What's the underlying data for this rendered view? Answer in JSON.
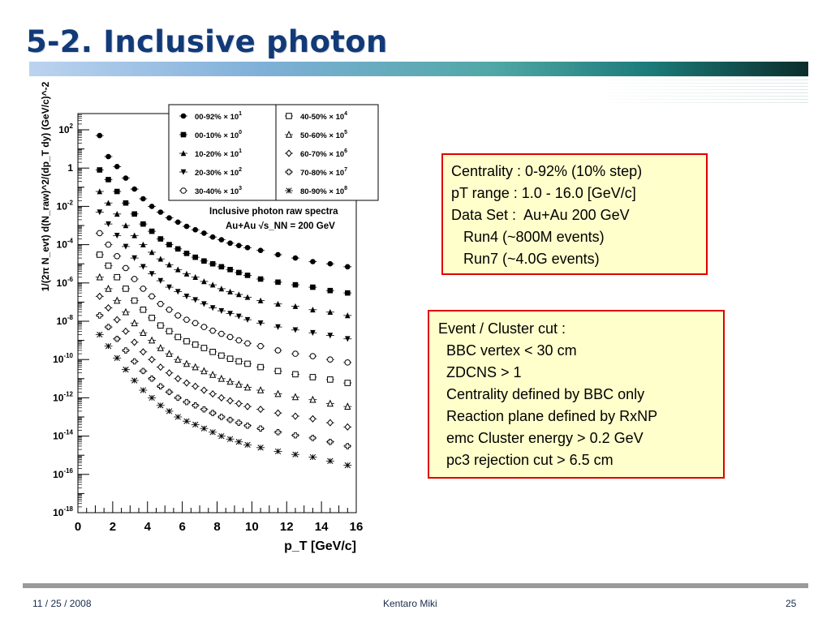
{
  "slide": {
    "title": "5-2. Inclusive photon",
    "footer_date": "11 / 25 / 2008",
    "footer_author": "Kentaro Miki",
    "page_number": "25"
  },
  "info_box_1": {
    "lines": [
      "Centrality : 0-92% (10% step)",
      "pT range : 1.0 - 16.0 [GeV/c]",
      "Data Set :  Au+Au 200 GeV",
      "   Run4 (~800M events)",
      "   Run7 (~4.0G events)"
    ]
  },
  "info_box_2": {
    "lines": [
      "Event / Cluster cut :",
      "  BBC vertex < 30 cm",
      "  ZDCNS > 1",
      "  Centrality defined by BBC only",
      "  Reaction plane defined by RxNP",
      "  emc Cluster energy > 0.2 GeV",
      "  pc3 rejection cut > 6.5 cm"
    ]
  },
  "chart_data": {
    "type": "scatter",
    "title": "Inclusive photon raw spectra",
    "subtitle": "Au+Au √s_NN = 200 GeV",
    "xlabel": "p_T [GeV/c]",
    "ylabel": "1/(2π N_evt) d(N_raw)^2/(dp_T dy) (GeV/c)^-2",
    "xlim": [
      0,
      16
    ],
    "ylim": [
      1e-18,
      300
    ],
    "y_log": true,
    "grid": false,
    "legend_position": "top-right",
    "x_ticks": [
      "0",
      "2",
      "4",
      "6",
      "8",
      "10",
      "12",
      "14",
      "16"
    ],
    "y_ticks": [
      {
        "base": "10",
        "exp": "2"
      },
      {
        "base": "1",
        "exp": ""
      },
      {
        "base": "10",
        "exp": "-2"
      },
      {
        "base": "10",
        "exp": "-4"
      },
      {
        "base": "10",
        "exp": "-6"
      },
      {
        "base": "10",
        "exp": "-8"
      },
      {
        "base": "10",
        "exp": "-10"
      },
      {
        "base": "10",
        "exp": "-12"
      },
      {
        "base": "10",
        "exp": "-14"
      },
      {
        "base": "10",
        "exp": "-16"
      },
      {
        "base": "10",
        "exp": "-18"
      }
    ],
    "series": [
      {
        "name": "00-92%",
        "scale": "10",
        "scale_exp": "1",
        "marker": "filled-circle",
        "x": [
          1.25,
          1.75,
          2.25,
          2.75,
          3.25,
          3.75,
          4.25,
          4.75,
          5.25,
          5.75,
          6.25,
          6.75,
          7.25,
          7.75,
          8.25,
          8.75,
          9.25,
          9.75,
          10.5,
          11.5,
          12.5,
          13.5,
          14.5,
          15.5
        ],
        "y": [
          50,
          4,
          1.2,
          0.3,
          0.08,
          0.025,
          0.01,
          0.005,
          0.0025,
          0.0015,
          0.0009,
          0.0006,
          0.0004,
          0.00025,
          0.00018,
          0.00012,
          9e-05,
          7e-05,
          5e-05,
          3e-05,
          2e-05,
          1.3e-05,
          1e-05,
          7e-06
        ]
      },
      {
        "name": "00-10%",
        "scale": "10",
        "scale_exp": "0",
        "marker": "filled-square",
        "x": [
          1.25,
          1.75,
          2.25,
          2.75,
          3.25,
          3.75,
          4.25,
          4.75,
          5.25,
          5.75,
          6.25,
          6.75,
          7.25,
          7.75,
          8.25,
          8.75,
          9.25,
          9.75,
          10.5,
          11.5,
          12.5,
          13.5,
          14.5,
          15.5
        ],
        "y": [
          0.8,
          0.25,
          0.06,
          0.015,
          0.004,
          0.0012,
          0.0005,
          0.0002,
          0.0001,
          6e-05,
          3.5e-05,
          2.2e-05,
          1.4e-05,
          1e-05,
          7e-06,
          5e-06,
          3.5e-06,
          2.5e-06,
          1.6e-06,
          1.1e-06,
          8e-07,
          6e-07,
          4e-07,
          3e-07
        ]
      },
      {
        "name": "10-20%",
        "scale": "10",
        "scale_exp": "1",
        "marker": "filled-triangle-up",
        "x": [
          1.25,
          1.75,
          2.25,
          2.75,
          3.25,
          3.75,
          4.25,
          4.75,
          5.25,
          5.75,
          6.25,
          6.75,
          7.25,
          7.75,
          8.25,
          8.75,
          9.25,
          9.75,
          10.5,
          11.5,
          12.5,
          13.5,
          14.5,
          15.5
        ],
        "y": [
          0.06,
          0.015,
          0.004,
          0.001,
          0.0003,
          0.0001,
          4e-05,
          1.8e-05,
          9e-06,
          5e-06,
          3e-06,
          2e-06,
          1.2e-06,
          8e-07,
          5e-07,
          3.5e-07,
          2.5e-07,
          1.8e-07,
          1.2e-07,
          8e-08,
          6e-08,
          4e-08,
          3e-08,
          2e-08
        ]
      },
      {
        "name": "20-30%",
        "scale": "10",
        "scale_exp": "2",
        "marker": "filled-triangle-down",
        "x": [
          1.25,
          1.75,
          2.25,
          2.75,
          3.25,
          3.75,
          4.25,
          4.75,
          5.25,
          5.75,
          6.25,
          6.75,
          7.25,
          7.75,
          8.25,
          8.75,
          9.25,
          9.75,
          10.5,
          11.5,
          12.5,
          13.5,
          14.5,
          15.5
        ],
        "y": [
          0.005,
          0.0012,
          0.0003,
          8e-05,
          2e-05,
          7e-06,
          3e-06,
          1.3e-06,
          6e-07,
          3.5e-07,
          2e-07,
          1.3e-07,
          8e-08,
          5e-08,
          3.5e-08,
          2.5e-08,
          1.8e-08,
          1.2e-08,
          8e-09,
          5e-09,
          3.5e-09,
          2.5e-09,
          1.8e-09,
          1.2e-09
        ]
      },
      {
        "name": "30-40%",
        "scale": "10",
        "scale_exp": "3",
        "marker": "open-circle",
        "x": [
          1.25,
          1.75,
          2.25,
          2.75,
          3.25,
          3.75,
          4.25,
          4.75,
          5.25,
          5.75,
          6.25,
          6.75,
          7.25,
          7.75,
          8.25,
          8.75,
          9.25,
          9.75,
          10.5,
          11.5,
          12.5,
          13.5,
          14.5,
          15.5
        ],
        "y": [
          0.0004,
          0.0001,
          2.5e-05,
          6e-06,
          1.6e-06,
          5e-07,
          2e-07,
          8e-08,
          4e-08,
          2e-08,
          1.2e-08,
          8e-09,
          5e-09,
          3.2e-09,
          2.2e-09,
          1.5e-09,
          1e-09,
          7e-10,
          5e-10,
          3e-10,
          2e-10,
          1.5e-10,
          1e-10,
          7e-11
        ]
      },
      {
        "name": "40-50%",
        "scale": "10",
        "scale_exp": "4",
        "marker": "open-square",
        "x": [
          1.25,
          1.75,
          2.25,
          2.75,
          3.25,
          3.75,
          4.25,
          4.75,
          5.25,
          5.75,
          6.25,
          6.75,
          7.25,
          7.75,
          8.25,
          8.75,
          9.25,
          9.75,
          10.5,
          11.5,
          12.5,
          13.5,
          14.5,
          15.5
        ],
        "y": [
          3e-05,
          8e-06,
          2e-06,
          5e-07,
          1.2e-07,
          4e-08,
          1.5e-08,
          6e-09,
          3e-09,
          1.5e-09,
          9e-10,
          6e-10,
          4e-10,
          2.5e-10,
          1.6e-10,
          1.1e-10,
          8e-11,
          6e-11,
          4e-11,
          2.5e-11,
          1.7e-11,
          1.2e-11,
          9e-12,
          6e-12
        ]
      },
      {
        "name": "50-60%",
        "scale": "10",
        "scale_exp": "5",
        "marker": "open-triangle-up",
        "x": [
          1.25,
          1.75,
          2.25,
          2.75,
          3.25,
          3.75,
          4.25,
          4.75,
          5.25,
          5.75,
          6.25,
          6.75,
          7.25,
          7.75,
          8.25,
          8.75,
          9.25,
          9.75,
          10.5,
          11.5,
          12.5,
          13.5,
          14.5,
          15.5
        ],
        "y": [
          2e-06,
          5e-07,
          1.2e-07,
          3e-08,
          8e-09,
          2.5e-09,
          1e-09,
          4e-10,
          2e-10,
          1e-10,
          6e-11,
          4e-11,
          2.5e-11,
          1.6e-11,
          1e-11,
          7e-12,
          5e-12,
          3.5e-12,
          2.5e-12,
          1.6e-12,
          1.1e-12,
          8e-13,
          5e-13,
          3.5e-13
        ]
      },
      {
        "name": "60-70%",
        "scale": "10",
        "scale_exp": "6",
        "marker": "open-diamond",
        "x": [
          1.25,
          1.75,
          2.25,
          2.75,
          3.25,
          3.75,
          4.25,
          4.75,
          5.25,
          5.75,
          6.25,
          6.75,
          7.25,
          7.75,
          8.25,
          8.75,
          9.25,
          9.75,
          10.5,
          11.5,
          12.5,
          13.5,
          14.5,
          15.5
        ],
        "y": [
          2e-07,
          5e-08,
          1.2e-08,
          3e-09,
          8e-10,
          2.5e-10,
          1e-10,
          4e-11,
          2e-11,
          1e-11,
          6e-12,
          4e-12,
          2.5e-12,
          1.6e-12,
          1e-12,
          7e-13,
          5e-13,
          3.5e-13,
          2.5e-13,
          1.6e-13,
          1.1e-13,
          8e-14,
          5e-14,
          3e-14
        ]
      },
      {
        "name": "70-80%",
        "scale": "10",
        "scale_exp": "7",
        "marker": "open-cross",
        "x": [
          1.25,
          1.75,
          2.25,
          2.75,
          3.25,
          3.75,
          4.25,
          4.75,
          5.25,
          5.75,
          6.25,
          6.75,
          7.25,
          7.75,
          8.25,
          8.75,
          9.25,
          9.75,
          10.5,
          11.5,
          12.5,
          13.5,
          14.5,
          15.5
        ],
        "y": [
          2e-08,
          5e-09,
          1.2e-09,
          3e-10,
          8e-11,
          2.5e-11,
          1e-11,
          4e-12,
          2e-12,
          1e-12,
          6e-13,
          4e-13,
          2.5e-13,
          1.6e-13,
          1e-13,
          7e-14,
          5e-14,
          3.5e-14,
          2.5e-14,
          1.6e-14,
          1.1e-14,
          8e-15,
          5e-15,
          3e-15
        ]
      },
      {
        "name": "80-90%",
        "scale": "10",
        "scale_exp": "8",
        "marker": "asterisk",
        "x": [
          1.25,
          1.75,
          2.25,
          2.75,
          3.25,
          3.75,
          4.25,
          4.75,
          5.25,
          5.75,
          6.25,
          6.75,
          7.25,
          7.75,
          8.25,
          8.75,
          9.25,
          9.75,
          10.5,
          11.5,
          12.5,
          13.5,
          14.5,
          15.5
        ],
        "y": [
          2e-09,
          5e-10,
          1.2e-10,
          3e-11,
          8e-12,
          2.5e-12,
          1e-12,
          4e-13,
          2e-13,
          1e-13,
          6e-14,
          4e-14,
          2.5e-14,
          1.6e-14,
          1e-14,
          7e-15,
          5e-15,
          3.5e-15,
          2.5e-15,
          1.6e-15,
          1.1e-15,
          8e-16,
          5e-16,
          3e-16
        ]
      }
    ]
  }
}
